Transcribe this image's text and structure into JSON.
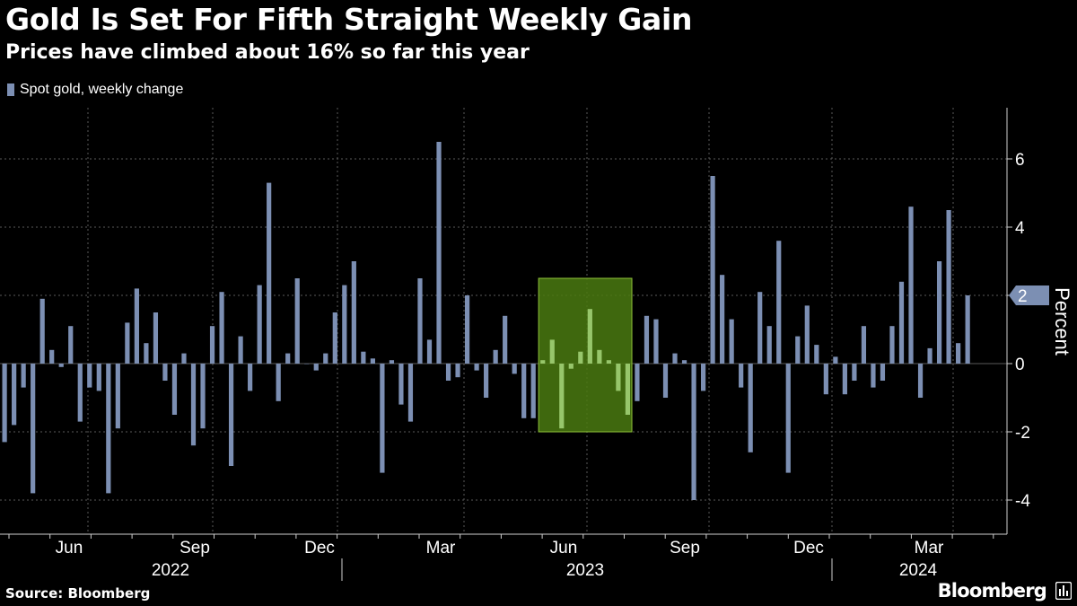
{
  "header": {
    "title": "Gold Is Set For Fifth Straight Weekly Gain",
    "subtitle": "Prices have climbed about 16% so far this year"
  },
  "footer": {
    "source": "Source: Bloomberg",
    "brand": "Bloomberg",
    "brand_icon": "bloomberg-terminal-icon"
  },
  "colors": {
    "background": "#000000",
    "bar": "#7c8fb3",
    "highlight_fill": "#4a7a10",
    "highlight_border": "#8fc23a",
    "highlight_bar": "#97c66b",
    "grid": "#5a5a5a",
    "text": "#ffffff",
    "flag": "#7c8fb3"
  },
  "chart_data": {
    "type": "bar",
    "legend": [
      "Spot gold, weekly change"
    ],
    "legend_position": "top-left",
    "ylabel": "Percent",
    "ylim": [
      -5,
      7.5
    ],
    "yticks": [
      -4,
      -2,
      0,
      2,
      4,
      6
    ],
    "y_axis_side": "right",
    "grid": true,
    "x_tick_labels": [
      "Jun",
      "Sep",
      "Dec",
      "Mar",
      "Jun",
      "Sep",
      "Dec",
      "Mar"
    ],
    "year_labels": [
      "2022",
      "2023",
      "2024"
    ],
    "last_value_flag": "2",
    "highlight_ranges": [
      [
        57,
        66
      ],
      [
        157,
        165
      ]
    ],
    "series": [
      {
        "name": "Spot gold, weekly change",
        "values": [
          -2.3,
          -1.8,
          -0.7,
          -3.8,
          1.9,
          0.4,
          -0.1,
          1.1,
          -1.7,
          -0.7,
          -0.8,
          -3.8,
          -1.9,
          1.2,
          2.2,
          0.6,
          1.5,
          -0.5,
          -1.5,
          0.3,
          -2.4,
          -1.9,
          1.1,
          2.1,
          -3.0,
          0.8,
          -0.8,
          2.3,
          5.3,
          -1.1,
          0.3,
          2.5,
          0.0,
          -0.2,
          0.3,
          1.5,
          2.3,
          3.0,
          0.35,
          0.15,
          -3.2,
          0.1,
          -1.2,
          -1.7,
          2.5,
          0.7,
          6.5,
          -0.5,
          -0.4,
          2.0,
          -0.2,
          -1.0,
          0.4,
          1.4,
          -0.3,
          -1.6,
          -1.6,
          0.1,
          0.7,
          -1.9,
          -0.15,
          0.35,
          1.6,
          0.4,
          0.1,
          -0.8,
          -1.5,
          -1.1,
          1.4,
          1.3,
          -1.0,
          0.3,
          0.1,
          -4.0,
          -0.8,
          5.5,
          2.6,
          1.3,
          -0.7,
          -2.6,
          2.1,
          1.1,
          3.6,
          -3.2,
          0.8,
          1.7,
          0.55,
          -0.9,
          0.2,
          -0.9,
          -0.5,
          1.1,
          -0.7,
          -0.5,
          1.1,
          2.4,
          4.6,
          -1.0,
          0.45,
          3.0,
          4.5,
          0.6,
          2.0
        ]
      }
    ]
  }
}
